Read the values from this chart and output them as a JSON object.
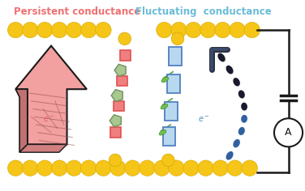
{
  "title_left": "Persistent conductance",
  "title_right": "Fluctuating  conductance",
  "title_left_color": "#F07070",
  "title_right_color": "#6BBCD8",
  "bg_color": "#FFFFFF",
  "gold_color": "#F5C518",
  "gold_outline": "#D4A800",
  "arrow_fill": "#F2A0A0",
  "arrow_outline": "#1a1a1a",
  "molecule_red_fill": "#F08080",
  "molecule_red_outline": "#E05050",
  "molecule_green_fill": "#A8C890",
  "molecule_green_outline": "#709060",
  "molecule_blue_light": "#B8D8F0",
  "molecule_blue_dark": "#5080C0",
  "molecule_blue_outline": "#4070B0",
  "dashed_dark": "#1a1a2e",
  "dashed_blue": "#3060A0",
  "hook_color": "#2a2a3a",
  "wire_color": "#1a1a1a",
  "eminus_color_left": "#E06060",
  "eminus_color_right": "#5090B8"
}
